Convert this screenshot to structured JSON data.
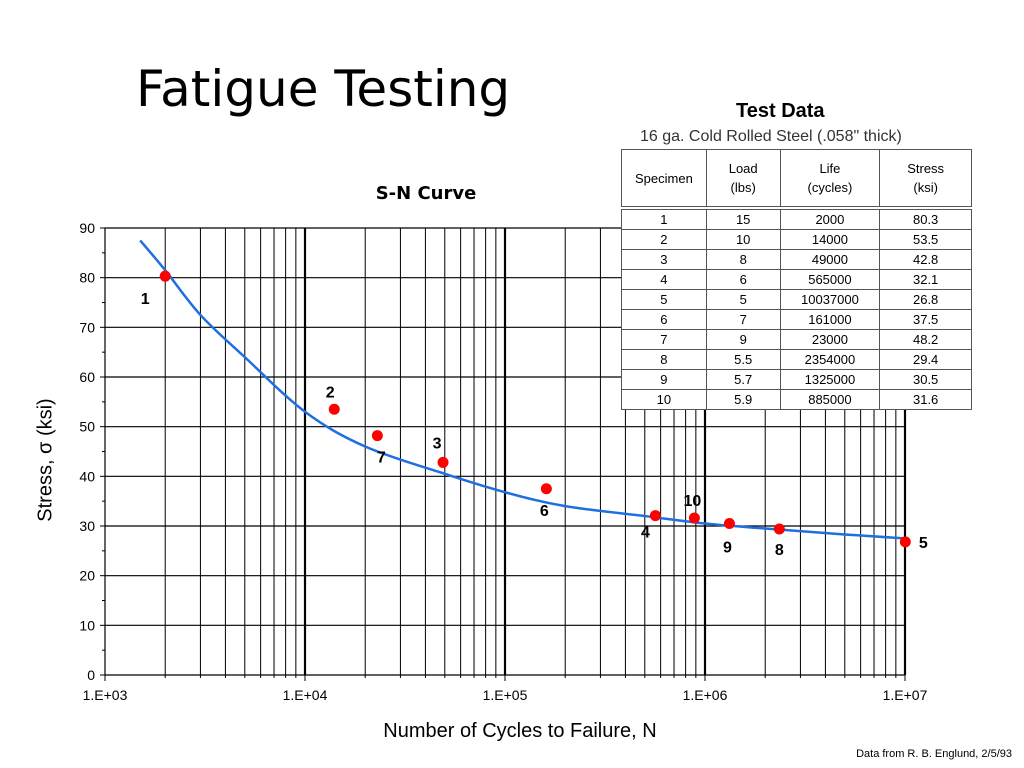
{
  "slide": {
    "title": "Fatigue Testing",
    "credit": "Data from R. B. Englund, 2/5/93"
  },
  "test_data": {
    "title": "Test Data",
    "subtitle": "16 ga. Cold Rolled Steel (.058\" thick)",
    "columns": [
      {
        "line1": "Specimen",
        "line2": ""
      },
      {
        "line1": "Load",
        "line2": "(lbs)"
      },
      {
        "line1": "Life",
        "line2": "(cycles)"
      },
      {
        "line1": "Stress",
        "line2": "(ksi)"
      }
    ],
    "rows": [
      [
        "1",
        "15",
        "2000",
        "80.3"
      ],
      [
        "2",
        "10",
        "14000",
        "53.5"
      ],
      [
        "3",
        "8",
        "49000",
        "42.8"
      ],
      [
        "4",
        "6",
        "565000",
        "32.1"
      ],
      [
        "5",
        "5",
        "10037000",
        "26.8"
      ],
      [
        "6",
        "7",
        "161000",
        "37.5"
      ],
      [
        "7",
        "9",
        "23000",
        "48.2"
      ],
      [
        "8",
        "5.5",
        "2354000",
        "29.4"
      ],
      [
        "9",
        "5.7",
        "1325000",
        "30.5"
      ],
      [
        "10",
        "5.9",
        "885000",
        "31.6"
      ]
    ]
  },
  "chart_data": {
    "type": "scatter",
    "title": "S-N Curve",
    "xlabel": "Number of Cycles to Failure, N",
    "ylabel": "Stress, σ (ksi)",
    "x_scale": "log",
    "xlim": [
      1000,
      10000000
    ],
    "ylim": [
      0,
      90
    ],
    "x_ticks": [
      1000,
      10000,
      100000,
      1000000,
      10000000
    ],
    "x_tick_labels": [
      "1.E+03",
      "1.E+04",
      "1.E+05",
      "1.E+06",
      "1.E+07"
    ],
    "y_ticks": [
      0,
      10,
      20,
      30,
      40,
      50,
      60,
      70,
      80,
      90
    ],
    "y_tick_labels": [
      "0",
      "10",
      "20",
      "30",
      "40",
      "50",
      "60",
      "70",
      "80",
      "90"
    ],
    "grid": true,
    "point_color": "#ff0000",
    "curve_color": "#1f6fe0",
    "points": [
      {
        "label": "1",
        "x": 2000,
        "y": 80.3
      },
      {
        "label": "2",
        "x": 14000,
        "y": 53.5
      },
      {
        "label": "3",
        "x": 49000,
        "y": 42.8
      },
      {
        "label": "4",
        "x": 565000,
        "y": 32.1
      },
      {
        "label": "5",
        "x": 10037000,
        "y": 26.8
      },
      {
        "label": "6",
        "x": 161000,
        "y": 37.5
      },
      {
        "label": "7",
        "x": 23000,
        "y": 48.2
      },
      {
        "label": "8",
        "x": 2354000,
        "y": 29.4
      },
      {
        "label": "9",
        "x": 1325000,
        "y": 30.5
      },
      {
        "label": "10",
        "x": 885000,
        "y": 31.6
      }
    ],
    "fit_curve": [
      {
        "x": 1500,
        "y": 87.5
      },
      {
        "x": 2000,
        "y": 81.5
      },
      {
        "x": 3000,
        "y": 72.5
      },
      {
        "x": 5000,
        "y": 64
      },
      {
        "x": 10000,
        "y": 53
      },
      {
        "x": 20000,
        "y": 46
      },
      {
        "x": 50000,
        "y": 40.5
      },
      {
        "x": 100000,
        "y": 36.8
      },
      {
        "x": 200000,
        "y": 34
      },
      {
        "x": 500000,
        "y": 32
      },
      {
        "x": 1000000,
        "y": 30.5
      },
      {
        "x": 2000000,
        "y": 29.5
      },
      {
        "x": 5000000,
        "y": 28.3
      },
      {
        "x": 10000000,
        "y": 27.5
      }
    ]
  }
}
